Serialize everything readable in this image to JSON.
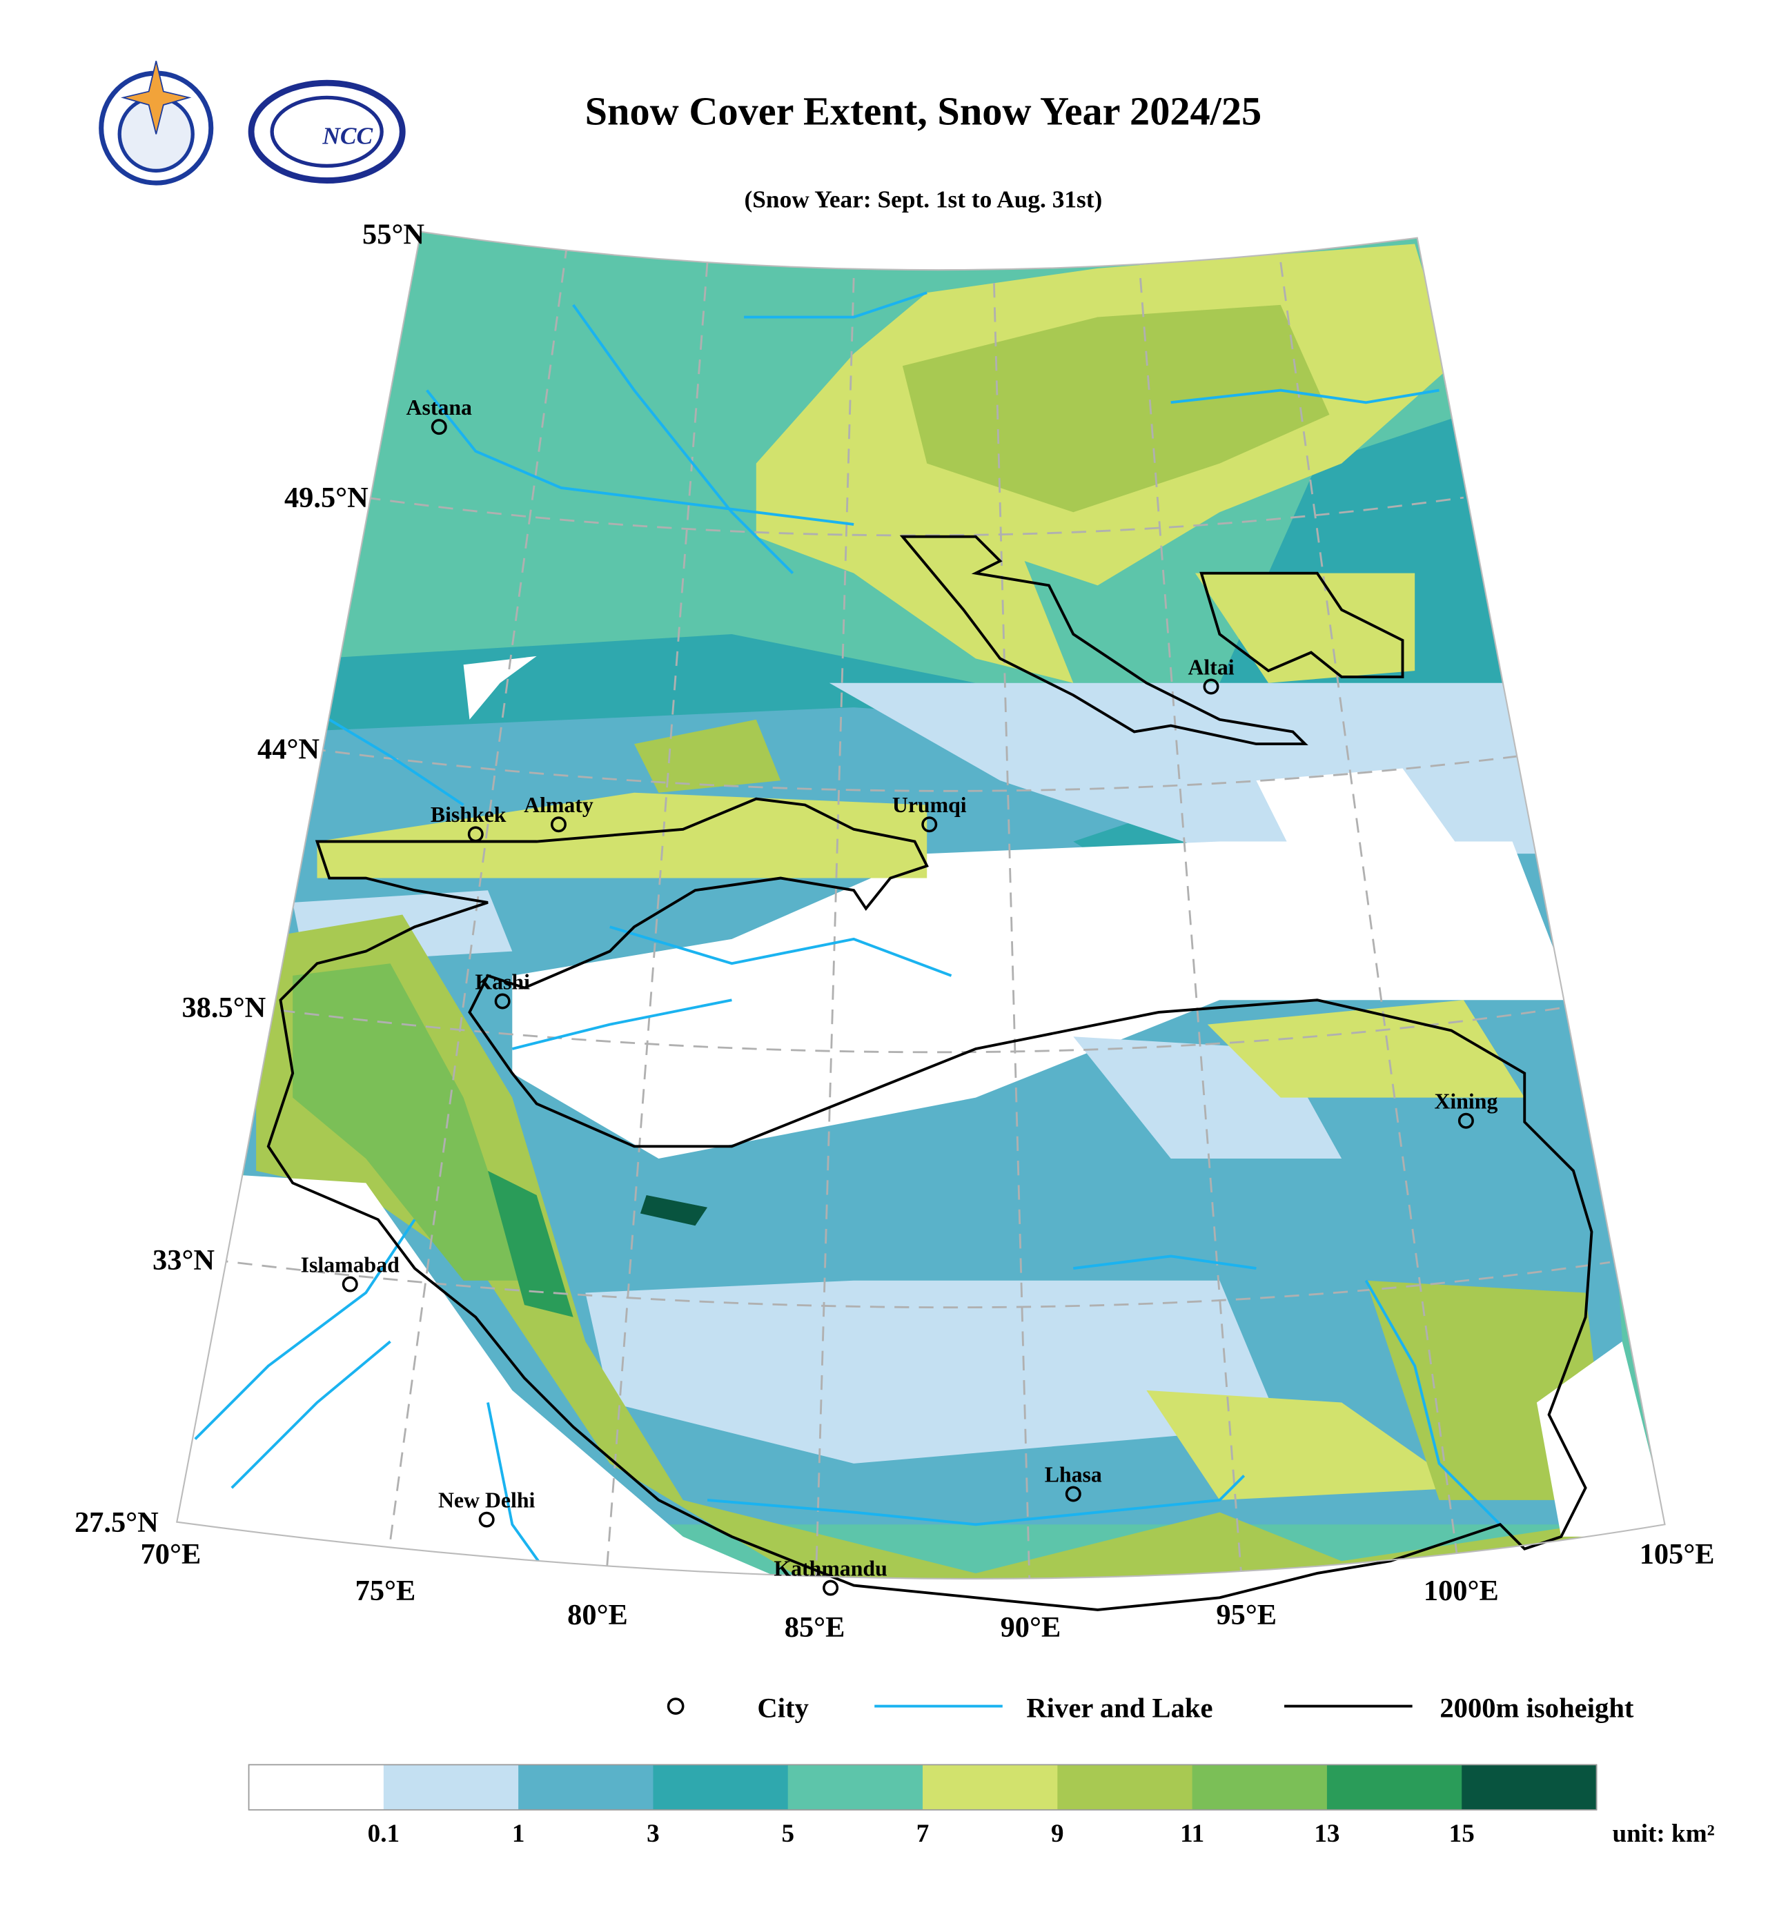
{
  "header": {
    "title": "Snow Cover Extent, Snow Year 2024/25",
    "subtitle": "(Snow Year: Sept. 1st to Aug. 31st)",
    "logo_text": "NCC"
  },
  "map": {
    "lat_labels": [
      "55°N",
      "49.5°N",
      "44°N",
      "38.5°N",
      "33°N",
      "27.5°N"
    ],
    "lon_labels": [
      "70°E",
      "75°E",
      "80°E",
      "85°E",
      "90°E",
      "95°E",
      "100°E",
      "105°E"
    ],
    "cities": [
      "Astana",
      "Bishkek",
      "Almaty",
      "Kashi",
      "Urumqi",
      "Altai",
      "Xining",
      "Islamabad",
      "New Delhi",
      "Lhasa",
      "Kathmandu"
    ]
  },
  "legend": {
    "items": [
      "City",
      "River and Lake",
      "2000m isoheight"
    ]
  },
  "colorbar": {
    "ticks": [
      0.1,
      1,
      3,
      5,
      7,
      9,
      11,
      13,
      15
    ],
    "unit": "unit: km²",
    "colors": [
      "#ffffff",
      "#c4e0f2",
      "#5ab2c9",
      "#2fa8ae",
      "#5dc5aa",
      "#d2e26d",
      "#a8c952",
      "#7bbf57",
      "#2a9c59",
      "#08543f"
    ]
  }
}
